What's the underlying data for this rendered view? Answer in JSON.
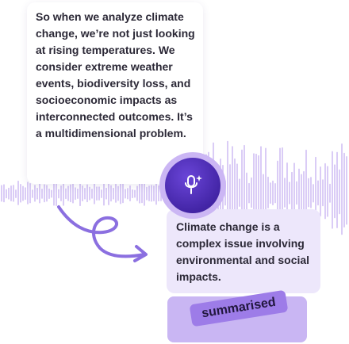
{
  "input_card": {
    "text": "So when we analyze climate change, we’re not just looking at rising temperatures. We consider extreme weather events, biodiversity loss, and socioeconomic impacts as interconnected outcomes. It’s a multidimensional problem."
  },
  "mic_button": {
    "icon": "microphone-sparkle-icon"
  },
  "output_card": {
    "text": "Climate change is a complex issue involving environmental and social impacts."
  },
  "badge": {
    "label": "summarised"
  },
  "colors": {
    "accent_purple": "#4a2bb0",
    "light_purple": "#ede7fb",
    "waveform": "#c8b4f2",
    "arrow": "#8b6fe0",
    "badge": "#9d7ce8",
    "text": "#2b2836"
  }
}
